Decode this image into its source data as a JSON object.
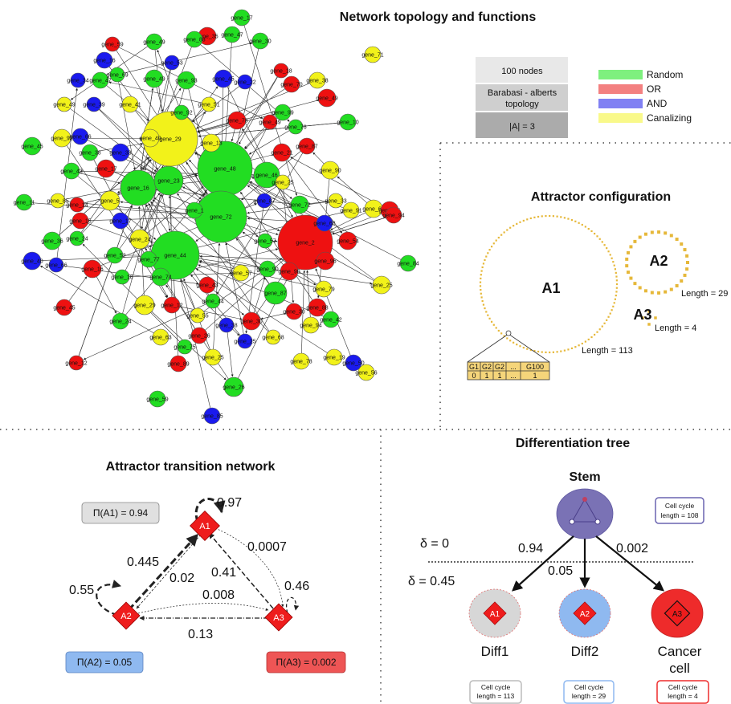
{
  "panels": {
    "network": {
      "title": "Network topology and functions",
      "info_boxes": [
        "100 nodes",
        "Barabasi - alberts topology",
        "|A| = 3"
      ],
      "legend": [
        {
          "label": "Random",
          "color": "#7ef07e"
        },
        {
          "label": "OR",
          "color": "#f38080"
        },
        {
          "label": "AND",
          "color": "#8080f3"
        },
        {
          "label": "Canalizing",
          "color": "#f9f98a"
        }
      ],
      "labeled_nodes": [
        {
          "id": "gene_29",
          "type": "Canalizing"
        },
        {
          "id": "gene_48",
          "type": "Random"
        },
        {
          "id": "gene_72",
          "type": "Random"
        },
        {
          "id": "gene_2",
          "type": "OR"
        },
        {
          "id": "gene_44",
          "type": "Random"
        },
        {
          "id": "gene_16",
          "type": "Random"
        },
        {
          "id": "gene_23",
          "type": "Random"
        },
        {
          "id": "gene_46",
          "type": "Random"
        },
        {
          "id": "gene_40",
          "type": "Canalizing"
        },
        {
          "id": "gene_13",
          "type": "Canalizing"
        },
        {
          "id": "gene_5",
          "type": "Canalizing"
        },
        {
          "id": "gene_24",
          "type": "Canalizing"
        },
        {
          "id": "gene_87",
          "type": "Random"
        },
        {
          "id": "gene_90",
          "type": "Canalizing"
        },
        {
          "id": "gene_94",
          "type": "OR"
        },
        {
          "id": "gene_25",
          "type": "Canalizing"
        },
        {
          "id": "gene_56",
          "type": "Canalizing"
        },
        {
          "id": "gene_59",
          "type": "Random"
        },
        {
          "id": "gene_85",
          "type": "AND"
        },
        {
          "id": "gene_26",
          "type": "Random"
        },
        {
          "id": "gene_29b",
          "type": "Canalizing"
        },
        {
          "id": "gene_17",
          "type": "Random"
        },
        {
          "id": "gene_47",
          "type": "Random"
        },
        {
          "id": "gene_30",
          "type": "Random"
        },
        {
          "id": "gene_71",
          "type": "Canalizing"
        },
        {
          "id": "gene_84",
          "type": "Random"
        },
        {
          "id": "gene_78",
          "type": "Canalizing"
        },
        {
          "id": "gene_1",
          "type": "Random"
        },
        {
          "id": "gene_99",
          "type": "Random"
        },
        {
          "id": "gene_10",
          "type": "Random"
        }
      ]
    },
    "attractors": {
      "title": "Attractor configuration",
      "items": [
        {
          "name": "A1",
          "length_label": "Length = 113",
          "length": 113
        },
        {
          "name": "A2",
          "length_label": "Length = 29",
          "length": 29
        },
        {
          "name": "A3",
          "length_label": "Length = 4",
          "length": 4
        }
      ],
      "state_table": {
        "headers": [
          "G1",
          "G2",
          "G2",
          "...",
          "G100"
        ],
        "values": [
          "0",
          "1",
          "1",
          "...",
          "1"
        ]
      }
    },
    "transition": {
      "title": "Attractor transition network",
      "nodes": [
        {
          "id": "A1",
          "pi_label": "Π(A1) = 0.94",
          "pi": 0.94,
          "self_loop": "0.97"
        },
        {
          "id": "A2",
          "pi_label": "Π(A2) = 0.05",
          "pi": 0.05,
          "self_loop": "0.55"
        },
        {
          "id": "A3",
          "pi_label": "Π(A3) = 0.002",
          "pi": 0.002,
          "self_loop": "0.46"
        }
      ],
      "edges": [
        {
          "from": "A2",
          "to": "A1",
          "weight": "0.445"
        },
        {
          "from": "A1",
          "to": "A2",
          "weight": "0.02"
        },
        {
          "from": "A1",
          "to": "A3",
          "weight": "0.0007"
        },
        {
          "from": "A3",
          "to": "A1",
          "weight": "0.41"
        },
        {
          "from": "A2",
          "to": "A3",
          "weight": "0.008"
        },
        {
          "from": "A3",
          "to": "A2",
          "weight": "0.13"
        }
      ]
    },
    "tree": {
      "title": "Differentiation tree",
      "root": {
        "label": "Stem",
        "cycle": [
          "Cell cycle",
          "length = 108"
        ]
      },
      "delta_top": "δ = 0",
      "delta_bottom": "δ = 0.45",
      "edges": [
        "0.94",
        "0.05",
        "0.002"
      ],
      "leaves": [
        {
          "attractor": "A1",
          "label": "Diff1",
          "cycle": [
            "Cell cycle",
            "length = 113"
          ],
          "color": "#d7d7d7"
        },
        {
          "attractor": "A2",
          "label": "Diff2",
          "cycle": [
            "Cell cycle",
            "length = 29"
          ],
          "color": "#8fb9f0"
        },
        {
          "attractor": "A3",
          "label_lines": [
            "Cancer",
            "cell"
          ],
          "cycle": [
            "Cell cycle",
            "length = 4"
          ],
          "color": "#ee2b2b"
        }
      ]
    }
  }
}
